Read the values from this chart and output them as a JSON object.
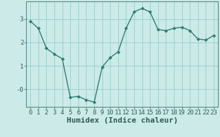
{
  "x": [
    0,
    1,
    2,
    3,
    4,
    5,
    6,
    7,
    8,
    9,
    10,
    11,
    12,
    13,
    14,
    15,
    16,
    17,
    18,
    19,
    20,
    21,
    22,
    23
  ],
  "y": [
    2.9,
    2.6,
    1.75,
    1.5,
    1.3,
    -0.35,
    -0.3,
    -0.45,
    -0.55,
    0.95,
    1.35,
    1.6,
    2.6,
    3.3,
    3.45,
    3.3,
    2.55,
    2.5,
    2.6,
    2.65,
    2.5,
    2.15,
    2.1,
    2.3
  ],
  "line_color": "#2d7d6e",
  "marker": "D",
  "marker_size": 2.2,
  "bg_color": "#cceae8",
  "grid_color": "#9ecfcc",
  "xlabel": "Humidex (Indice chaleur)",
  "xlabel_fontsize": 8,
  "ytick_labels": [
    "-0",
    "1",
    "2",
    "3"
  ],
  "ytick_vals": [
    0,
    1,
    2,
    3
  ],
  "ylim": [
    -0.75,
    3.75
  ],
  "xlim": [
    -0.5,
    23.5
  ],
  "tick_fontsize": 6.5,
  "line_width": 1.0,
  "spine_color": "#5a8a86"
}
